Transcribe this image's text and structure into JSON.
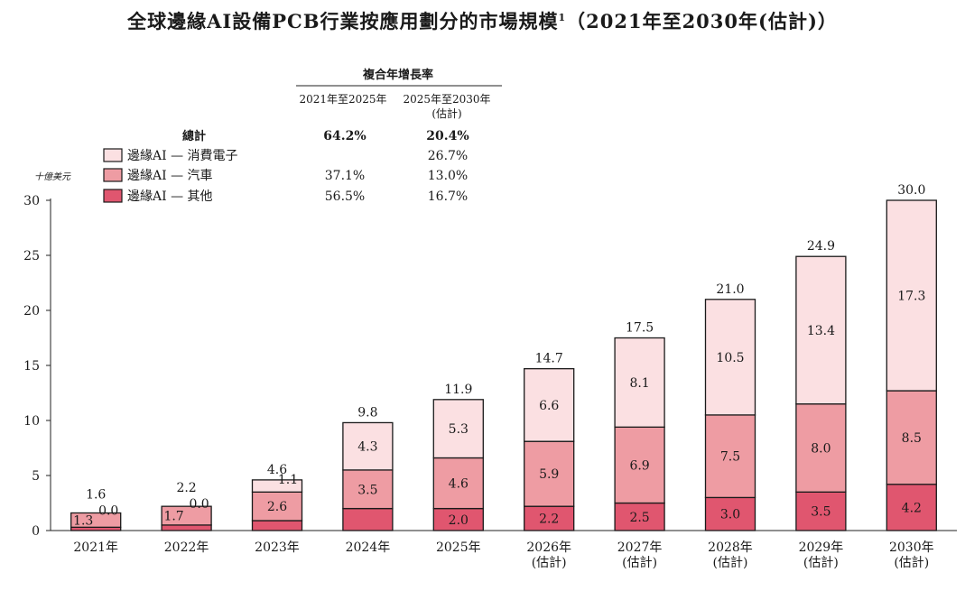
{
  "title": "全球邊緣AI設備PCB行業按應用劃分的市場規模",
  "title_sup": "1",
  "title_suffix": "（2021年至2030年(估計)）",
  "unit_label": "十億美元",
  "cagr_table": {
    "header": "複合年增長率",
    "col1": "2021年至2025年",
    "col2_line1": "2025年至2030年",
    "col2_line2": "(估計)",
    "rows": [
      {
        "label": "總計",
        "c1": "64.2%",
        "c2": "20.4%",
        "bold": true,
        "swatch": ""
      },
      {
        "label": "邊緣AI — 消費電子",
        "c1": "",
        "c2": "26.7%",
        "bold": false,
        "swatch": "#fbe0e2"
      },
      {
        "label": "邊緣AI — 汽車",
        "c1": "37.1%",
        "c2": "13.0%",
        "bold": false,
        "swatch": "#ee9ca3"
      },
      {
        "label": "邊緣AI — 其他",
        "c1": "56.5%",
        "c2": "16.7%",
        "bold": false,
        "swatch": "#e0566f"
      }
    ]
  },
  "chart_data": {
    "type": "bar",
    "stacked": true,
    "categories": [
      "2021年",
      "2022年",
      "2023年",
      "2024年",
      "2025年",
      "2026年\n(估計)",
      "2027年\n(估計)",
      "2028年\n(估計)",
      "2029年\n(估計)",
      "2030年\n(估計)"
    ],
    "series": [
      {
        "name": "邊緣AI — 其他",
        "color": "#e0566f",
        "values": [
          0.3,
          0.5,
          0.9,
          2.0,
          2.0,
          2.2,
          2.5,
          3.0,
          3.5,
          4.2
        ],
        "labels": [
          "",
          "",
          "",
          "",
          "2.0",
          "2.2",
          "2.5",
          "3.0",
          "3.5",
          "4.2"
        ]
      },
      {
        "name": "邊緣AI — 汽車",
        "color": "#ee9ca3",
        "values": [
          1.3,
          1.7,
          2.6,
          3.5,
          4.6,
          5.9,
          6.9,
          7.5,
          8.0,
          8.5
        ],
        "labels": [
          "1.3",
          "1.7",
          "2.6",
          "3.5",
          "4.6",
          "5.9",
          "6.9",
          "7.5",
          "8.0",
          "8.5"
        ]
      },
      {
        "name": "邊緣AI — 消費電子",
        "color": "#fbe0e2",
        "values": [
          0.0,
          0.0,
          1.1,
          4.3,
          5.3,
          6.6,
          8.1,
          10.5,
          13.4,
          17.3
        ],
        "labels": [
          "0.0",
          "0.0",
          "1.1",
          "4.3",
          "5.3",
          "6.6",
          "8.1",
          "10.5",
          "13.4",
          "17.3"
        ]
      }
    ],
    "totals": [
      "1.6",
      "2.2",
      "4.6",
      "9.8",
      "11.9",
      "14.7",
      "17.5",
      "21.0",
      "24.9",
      "30.0"
    ],
    "ylim": [
      0,
      30
    ],
    "yticks": [
      0,
      5,
      10,
      15,
      20,
      25,
      30
    ],
    "ylabel": "十億美元",
    "grid": false
  }
}
